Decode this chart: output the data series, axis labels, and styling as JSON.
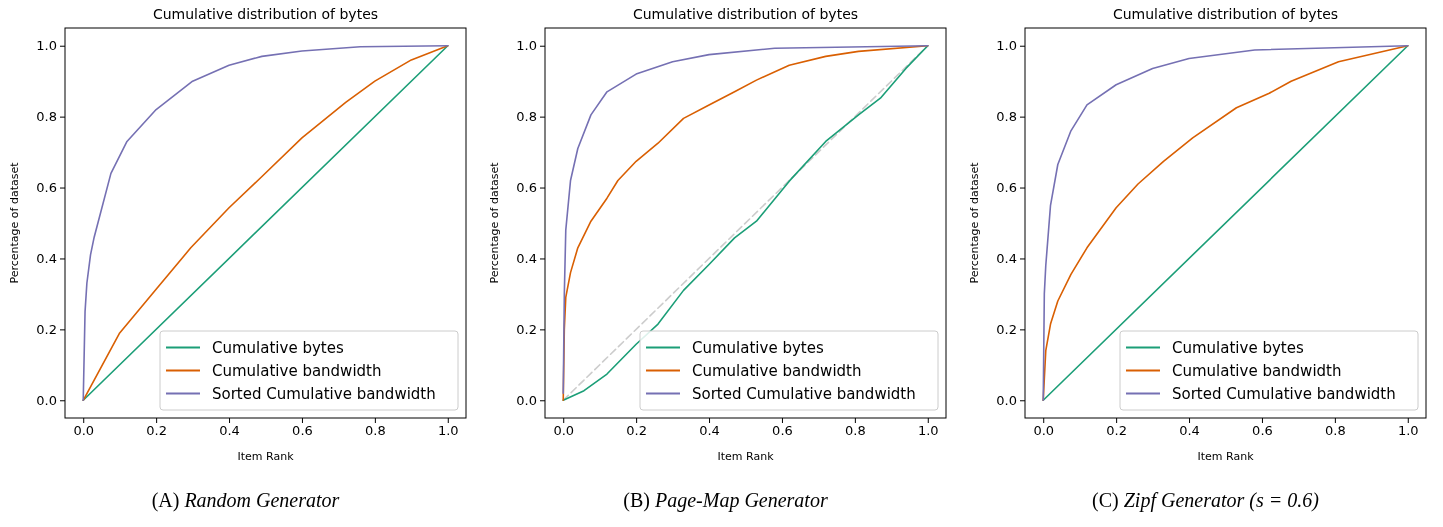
{
  "chart_data": [
    {
      "type": "line",
      "title": "Cumulative distribution of bytes",
      "xlabel": "Item Rank",
      "ylabel": "Percentage of dataset",
      "annotations": [
        "(A) Random Generator"
      ],
      "xlim": [
        -0.05,
        1.05
      ],
      "ylim": [
        -0.05,
        1.05
      ],
      "xticks": [
        {
          "value": 0,
          "label": "0.0"
        },
        {
          "value": 0.2,
          "label": "0.2"
        },
        {
          "value": 0.4,
          "label": "0.4"
        },
        {
          "value": 0.6,
          "label": "0.6"
        },
        {
          "value": 0.8,
          "label": "0.8"
        },
        {
          "value": 1,
          "label": "1.0"
        }
      ],
      "yticks": [
        {
          "value": 0,
          "label": "0.0"
        },
        {
          "value": 0.2,
          "label": "0.2"
        },
        {
          "value": 0.4,
          "label": "0.4"
        },
        {
          "value": 0.6,
          "label": "0.6"
        },
        {
          "value": 0.8,
          "label": "0.8"
        },
        {
          "value": 1,
          "label": "1.0"
        }
      ],
      "grid": false,
      "legend": "bottom right",
      "marker": "none",
      "series": [
        {
          "name": "Cumulative bytes",
          "color": "#1b9e77",
          "x": [
            0,
            1
          ],
          "values": [
            0,
            1
          ]
        },
        {
          "name": "Cumulative bandwidth",
          "color": "#d95f02",
          "x": [
            0,
            0.1,
            0.2,
            0.295,
            0.4,
            0.486,
            0.6,
            0.72,
            0.8,
            0.9,
            1
          ],
          "values": [
            0,
            0.19,
            0.313,
            0.43,
            0.543,
            0.627,
            0.74,
            0.84,
            0.9,
            0.96,
            1
          ]
        },
        {
          "name": "Sorted Cumulative bandwidth",
          "color": "#7570b3",
          "x": [
            0,
            0.005,
            0.01,
            0.02,
            0.03,
            0.076,
            0.12,
            0.2,
            0.3,
            0.4,
            0.49,
            0.6,
            0.76,
            1
          ],
          "values": [
            0,
            0.25,
            0.33,
            0.41,
            0.46,
            0.64,
            0.73,
            0.82,
            0.9,
            0.945,
            0.97,
            0.985,
            0.997,
            1
          ]
        }
      ]
    },
    {
      "type": "line",
      "title": "Cumulative distribution of bytes",
      "xlabel": "Item Rank",
      "ylabel": "Percentage of dataset",
      "annotations": [
        "(B) Page-Map Generator"
      ],
      "xlim": [
        -0.05,
        1.05
      ],
      "ylim": [
        -0.05,
        1.05
      ],
      "xticks": [
        {
          "value": 0,
          "label": "0.0"
        },
        {
          "value": 0.2,
          "label": "0.2"
        },
        {
          "value": 0.4,
          "label": "0.4"
        },
        {
          "value": 0.6,
          "label": "0.6"
        },
        {
          "value": 0.8,
          "label": "0.8"
        },
        {
          "value": 1,
          "label": "1.0"
        }
      ],
      "yticks": [
        {
          "value": 0,
          "label": "0.0"
        },
        {
          "value": 0.2,
          "label": "0.2"
        },
        {
          "value": 0.4,
          "label": "0.4"
        },
        {
          "value": 0.6,
          "label": "0.6"
        },
        {
          "value": 0.8,
          "label": "0.8"
        },
        {
          "value": 1,
          "label": "1.0"
        }
      ],
      "grid": false,
      "legend": "bottom right",
      "marker": "none",
      "series": [
        {
          "color": "#cccccc",
          "line_style": "dashed",
          "x": [
            0,
            1
          ],
          "values": [
            0,
            1
          ]
        },
        {
          "name": "Cumulative bytes",
          "color": "#1b9e77",
          "x": [
            0,
            0.057,
            0.12,
            0.2,
            0.26,
            0.33,
            0.4,
            0.47,
            0.53,
            0.62,
            0.72,
            0.81,
            0.87,
            0.94,
            1
          ],
          "values": [
            0,
            0.027,
            0.074,
            0.158,
            0.215,
            0.31,
            0.383,
            0.458,
            0.505,
            0.618,
            0.73,
            0.805,
            0.852,
            0.936,
            1
          ]
        },
        {
          "name": "Cumulative bandwidth",
          "color": "#d95f02",
          "x": [
            0,
            0.003,
            0.007,
            0.02,
            0.04,
            0.076,
            0.12,
            0.15,
            0.2,
            0.26,
            0.33,
            0.4,
            0.47,
            0.53,
            0.62,
            0.72,
            0.81,
            1
          ],
          "values": [
            0,
            0.2,
            0.29,
            0.36,
            0.43,
            0.505,
            0.57,
            0.62,
            0.674,
            0.725,
            0.795,
            0.833,
            0.87,
            0.903,
            0.945,
            0.97,
            0.984,
            1
          ]
        },
        {
          "name": "Sorted Cumulative bandwidth",
          "color": "#7570b3",
          "x": [
            0,
            0.003,
            0.007,
            0.02,
            0.04,
            0.076,
            0.12,
            0.2,
            0.3,
            0.4,
            0.58,
            1
          ],
          "values": [
            0.02,
            0.3,
            0.48,
            0.62,
            0.71,
            0.805,
            0.87,
            0.92,
            0.955,
            0.975,
            0.993,
            1
          ]
        }
      ]
    },
    {
      "type": "line",
      "title": "Cumulative distribution of bytes",
      "xlabel": "Item Rank",
      "ylabel": "Percentage of dataset",
      "annotations": [
        "(C) Zipf Generator (s = 0.6)"
      ],
      "xlim": [
        -0.05,
        1.05
      ],
      "ylim": [
        -0.05,
        1.05
      ],
      "xticks": [
        {
          "value": 0,
          "label": "0.0"
        },
        {
          "value": 0.2,
          "label": "0.2"
        },
        {
          "value": 0.4,
          "label": "0.4"
        },
        {
          "value": 0.6,
          "label": "0.6"
        },
        {
          "value": 0.8,
          "label": "0.8"
        },
        {
          "value": 1,
          "label": "1.0"
        }
      ],
      "yticks": [
        {
          "value": 0,
          "label": "0.0"
        },
        {
          "value": 0.2,
          "label": "0.2"
        },
        {
          "value": 0.4,
          "label": "0.4"
        },
        {
          "value": 0.6,
          "label": "0.6"
        },
        {
          "value": 0.8,
          "label": "0.8"
        },
        {
          "value": 1,
          "label": "1.0"
        }
      ],
      "grid": false,
      "legend": "bottom right",
      "marker": "none",
      "series": [
        {
          "name": "Cumulative bytes",
          "color": "#1b9e77",
          "x": [
            0,
            1
          ],
          "values": [
            0,
            1
          ]
        },
        {
          "name": "Cumulative bandwidth",
          "color": "#d95f02",
          "x": [
            0,
            0.007,
            0.02,
            0.04,
            0.076,
            0.12,
            0.2,
            0.26,
            0.33,
            0.41,
            0.53,
            0.62,
            0.68,
            0.81,
            1
          ],
          "values": [
            0,
            0.14,
            0.215,
            0.28,
            0.355,
            0.43,
            0.543,
            0.61,
            0.674,
            0.74,
            0.825,
            0.866,
            0.9,
            0.955,
            1
          ]
        },
        {
          "name": "Sorted Cumulative bandwidth",
          "color": "#7570b3",
          "x": [
            0,
            0.003,
            0.007,
            0.02,
            0.04,
            0.076,
            0.12,
            0.2,
            0.3,
            0.4,
            0.58,
            1
          ],
          "values": [
            0,
            0.3,
            0.38,
            0.55,
            0.665,
            0.76,
            0.833,
            0.89,
            0.936,
            0.964,
            0.988,
            1
          ]
        }
      ]
    }
  ]
}
